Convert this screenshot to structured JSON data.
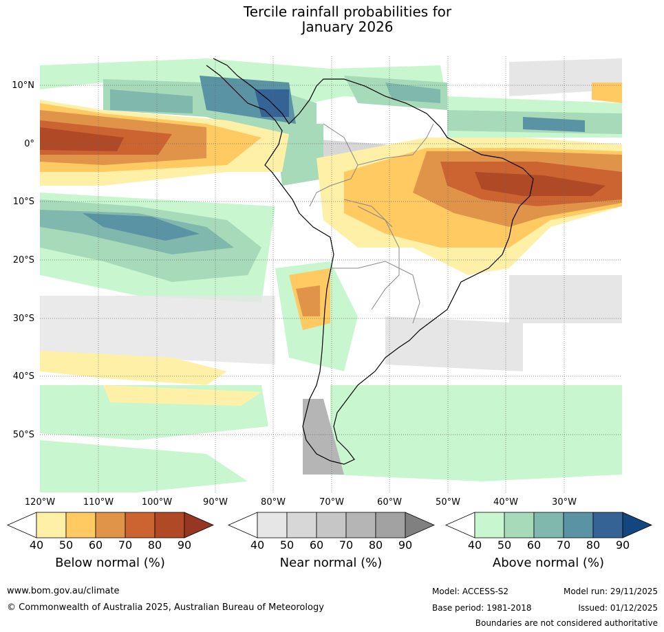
{
  "title_line1": "Tercile rainfall probabilities for",
  "title_line2": "January 2026",
  "lat_labels": [
    "10°N",
    "0°",
    "10°S",
    "20°S",
    "30°S",
    "40°S",
    "50°S"
  ],
  "lon_labels": [
    "120°W",
    "110°W",
    "100°W",
    "90°W",
    "80°W",
    "70°W",
    "60°W",
    "50°W",
    "40°W",
    "30°W"
  ],
  "colorbars": [
    {
      "title": "Below normal (%)",
      "ticks": [
        "40",
        "50",
        "60",
        "70",
        "80",
        "90"
      ],
      "colors": [
        "#fff0a8",
        "#ffca62",
        "#e0944a",
        "#cc6431",
        "#b04a26",
        "#953722"
      ]
    },
    {
      "title": "Near normal (%)",
      "ticks": [
        "40",
        "50",
        "60",
        "70",
        "80",
        "90"
      ],
      "colors": [
        "#e6e6e6",
        "#d7d7d7",
        "#c6c6c6",
        "#b5b5b5",
        "#a2a2a2",
        "#808080"
      ]
    },
    {
      "title": "Above normal (%)",
      "ticks": [
        "40",
        "50",
        "60",
        "70",
        "80",
        "90"
      ],
      "colors": [
        "#c8f7cf",
        "#a6dab9",
        "#81b8ae",
        "#5a93a4",
        "#356396",
        "#13467e"
      ]
    }
  ],
  "footer": {
    "url": "www.bom.gov.au/climate",
    "copyright": "© Commonwealth of Australia 2025, Australian Bureau of Meteorology",
    "model": "Model: ACCESS-S2",
    "base_period": "Base period: 1981-2018",
    "model_run": "Model run: 29/11/2025",
    "issued": "Issued: 01/12/2025",
    "boundaries": "Boundaries are not considered authoritative"
  }
}
